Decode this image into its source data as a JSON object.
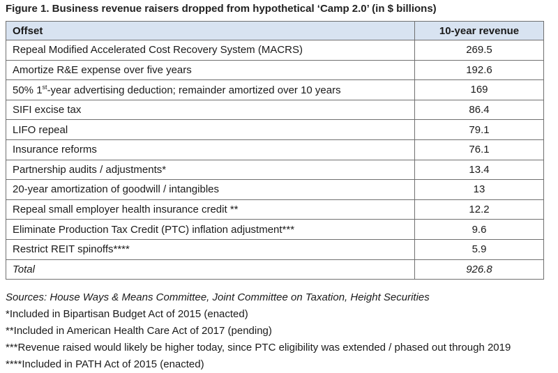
{
  "title": "Figure 1. Business revenue raisers dropped from hypothetical ‘Camp 2.0’ (in $ billions)",
  "table": {
    "headers": [
      "Offset",
      "10-year revenue"
    ],
    "rows": [
      {
        "offset": "Repeal Modified Accelerated Cost Recovery System (MACRS)",
        "revenue": "269.5"
      },
      {
        "offset": "Amortize R&E expense over five years",
        "revenue": "192.6"
      },
      {
        "offset_pre": "50% 1",
        "offset_sup": "st",
        "offset_post": "-year advertising deduction; remainder amortized over 10 years",
        "revenue": "169"
      },
      {
        "offset": "SIFI excise tax",
        "revenue": "86.4"
      },
      {
        "offset": "LIFO repeal",
        "revenue": "79.1"
      },
      {
        "offset": "Insurance reforms",
        "revenue": "76.1"
      },
      {
        "offset": "Partnership audits / adjustments*",
        "revenue": "13.4"
      },
      {
        "offset": "20-year amortization of goodwill / intangibles",
        "revenue": "13"
      },
      {
        "offset": "Repeal small employer health insurance credit **",
        "revenue": "12.2"
      },
      {
        "offset": "Eliminate Production Tax Credit (PTC) inflation adjustment***",
        "revenue": "9.6"
      },
      {
        "offset": "Restrict REIT spinoffs****",
        "revenue": "5.9"
      }
    ],
    "total": {
      "label": "Total",
      "revenue": "926.8"
    }
  },
  "notes": {
    "sources": "Sources: House Ways & Means Committee, Joint Committee on Taxation, Height Securities",
    "footnotes": [
      "*Included in Bipartisan Budget Act of 2015 (enacted)",
      "**Included in American Health Care Act of 2017 (pending)",
      "***Revenue raised would likely be higher today, since PTC eligibility was extended / phased out through 2019",
      "****Included in PATH Act of 2015 (enacted)"
    ]
  },
  "colors": {
    "header_bg": "#d8e3f1",
    "border": "#6f6f6f"
  }
}
